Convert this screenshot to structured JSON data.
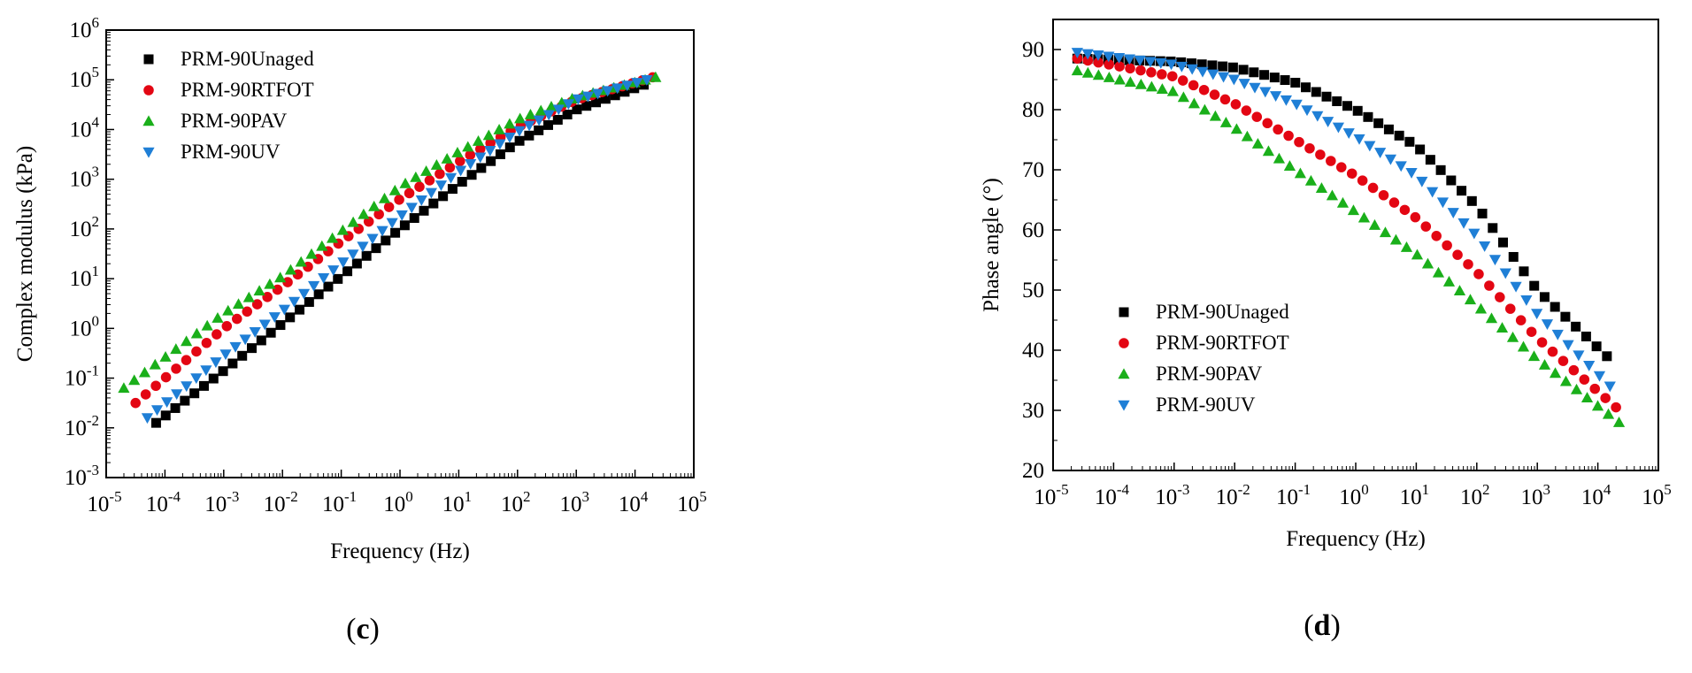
{
  "chart_data": [
    {
      "type": "scatter",
      "panel": "(c)",
      "panel_prefix": "(",
      "panel_letter": "c",
      "panel_suffix": ")",
      "title": "",
      "xlabel": "Frequency (Hz)",
      "ylabel": "Complex modulus (kPa)",
      "xscale": "log",
      "yscale": "log",
      "xlim_exp": [
        -5,
        5
      ],
      "ylim_exp": [
        -3,
        6
      ],
      "x_ticks": [
        {
          "base": "10",
          "exp": "-5"
        },
        {
          "base": "10",
          "exp": "-4"
        },
        {
          "base": "10",
          "exp": "-3"
        },
        {
          "base": "10",
          "exp": "-2"
        },
        {
          "base": "10",
          "exp": "-1"
        },
        {
          "base": "10",
          "exp": "0"
        },
        {
          "base": "10",
          "exp": "1"
        },
        {
          "base": "10",
          "exp": "2"
        },
        {
          "base": "10",
          "exp": "3"
        },
        {
          "base": "10",
          "exp": "4"
        },
        {
          "base": "10",
          "exp": "5"
        }
      ],
      "y_ticks": [
        {
          "base": "10",
          "exp": "-3"
        },
        {
          "base": "10",
          "exp": "-2"
        },
        {
          "base": "10",
          "exp": "-1"
        },
        {
          "base": "10",
          "exp": "0"
        },
        {
          "base": "10",
          "exp": "1"
        },
        {
          "base": "10",
          "exp": "2"
        },
        {
          "base": "10",
          "exp": "3"
        },
        {
          "base": "10",
          "exp": "4"
        },
        {
          "base": "10",
          "exp": "5"
        },
        {
          "base": "10",
          "exp": "6"
        }
      ],
      "legend_position": "top-left",
      "series": [
        {
          "name": "PRM-90Unaged",
          "marker": "square",
          "color": "#000000",
          "anchors": [
            [
              -4.15,
              -1.9
            ],
            [
              -3.0,
              -0.85
            ],
            [
              -2.0,
              0.1
            ],
            [
              -1.0,
              1.05
            ],
            [
              0.0,
              2.0
            ],
            [
              1.0,
              2.9
            ],
            [
              2.0,
              3.75
            ],
            [
              3.0,
              4.4
            ],
            [
              4.15,
              4.9
            ]
          ]
        },
        {
          "name": "PRM-90RTFOT",
          "marker": "circle",
          "color": "#e30613",
          "anchors": [
            [
              -4.5,
              -1.5
            ],
            [
              -3.0,
              0.0
            ],
            [
              -2.0,
              0.85
            ],
            [
              -1.0,
              1.75
            ],
            [
              0.0,
              2.6
            ],
            [
              1.0,
              3.35
            ],
            [
              2.0,
              4.05
            ],
            [
              3.0,
              4.6
            ],
            [
              4.3,
              5.05
            ]
          ]
        },
        {
          "name": "PRM-90PAV",
          "marker": "triangle-up",
          "color": "#1aaf1a",
          "anchors": [
            [
              -4.7,
              -1.2
            ],
            [
              -3.0,
              0.3
            ],
            [
              -2.0,
              1.05
            ],
            [
              -1.0,
              1.95
            ],
            [
              0.0,
              2.85
            ],
            [
              1.0,
              3.55
            ],
            [
              2.0,
              4.2
            ],
            [
              3.0,
              4.65
            ],
            [
              4.35,
              5.05
            ]
          ]
        },
        {
          "name": "PRM-90UV",
          "marker": "triangle-down",
          "color": "#1f7fd6",
          "anchors": [
            [
              -4.3,
              -1.8
            ],
            [
              -3.0,
              -0.55
            ],
            [
              -2.0,
              0.35
            ],
            [
              -1.0,
              1.3
            ],
            [
              0.0,
              2.25
            ],
            [
              1.0,
              3.15
            ],
            [
              2.0,
              3.95
            ],
            [
              3.0,
              4.6
            ],
            [
              4.2,
              5.0
            ]
          ]
        }
      ]
    },
    {
      "type": "scatter",
      "panel": "(d)",
      "panel_prefix": "(",
      "panel_letter": "d",
      "panel_suffix": ")",
      "title": "",
      "xlabel": "Frequency (Hz)",
      "ylabel": "Phase angle (°)",
      "xscale": "log",
      "yscale": "linear",
      "xlim_exp": [
        -5,
        5
      ],
      "ylim": [
        20,
        95
      ],
      "x_ticks": [
        {
          "base": "10",
          "exp": "-5"
        },
        {
          "base": "10",
          "exp": "-4"
        },
        {
          "base": "10",
          "exp": "-3"
        },
        {
          "base": "10",
          "exp": "-2"
        },
        {
          "base": "10",
          "exp": "-1"
        },
        {
          "base": "10",
          "exp": "0"
        },
        {
          "base": "10",
          "exp": "1"
        },
        {
          "base": "10",
          "exp": "2"
        },
        {
          "base": "10",
          "exp": "3"
        },
        {
          "base": "10",
          "exp": "4"
        },
        {
          "base": "10",
          "exp": "5"
        }
      ],
      "y_ticks": [
        "20",
        "30",
        "40",
        "50",
        "60",
        "70",
        "80",
        "90"
      ],
      "legend_position": "bottom-left",
      "series": [
        {
          "name": "PRM-90Unaged",
          "marker": "square",
          "color": "#000000",
          "anchors": [
            [
              -4.6,
              88.5
            ],
            [
              -3.0,
              88.0
            ],
            [
              -2.0,
              87.0
            ],
            [
              -1.0,
              84.5
            ],
            [
              0.0,
              80.0
            ],
            [
              1.0,
              74.0
            ],
            [
              2.0,
              64.0
            ],
            [
              3.0,
              50.0
            ],
            [
              4.15,
              39.0
            ]
          ]
        },
        {
          "name": "PRM-90RTFOT",
          "marker": "circle",
          "color": "#e30613",
          "anchors": [
            [
              -4.6,
              88.5
            ],
            [
              -3.0,
              85.5
            ],
            [
              -2.0,
              81.0
            ],
            [
              -1.0,
              75.0
            ],
            [
              0.0,
              69.0
            ],
            [
              1.0,
              62.0
            ],
            [
              2.0,
              53.0
            ],
            [
              3.0,
              42.0
            ],
            [
              4.3,
              30.5
            ]
          ]
        },
        {
          "name": "PRM-90PAV",
          "marker": "triangle-up",
          "color": "#1aaf1a",
          "anchors": [
            [
              -4.6,
              86.5
            ],
            [
              -3.0,
              83.0
            ],
            [
              -2.0,
              77.0
            ],
            [
              -1.0,
              70.0
            ],
            [
              0.0,
              63.0
            ],
            [
              1.0,
              56.0
            ],
            [
              2.0,
              47.5
            ],
            [
              3.0,
              38.5
            ],
            [
              4.35,
              28.0
            ]
          ]
        },
        {
          "name": "PRM-90UV",
          "marker": "triangle-down",
          "color": "#1f7fd6",
          "anchors": [
            [
              -4.6,
              89.5
            ],
            [
              -3.0,
              87.5
            ],
            [
              -2.0,
              85.0
            ],
            [
              -1.0,
              81.0
            ],
            [
              0.0,
              75.5
            ],
            [
              1.0,
              69.0
            ],
            [
              2.0,
              59.0
            ],
            [
              3.0,
              46.0
            ],
            [
              4.2,
              34.0
            ]
          ]
        }
      ]
    }
  ]
}
